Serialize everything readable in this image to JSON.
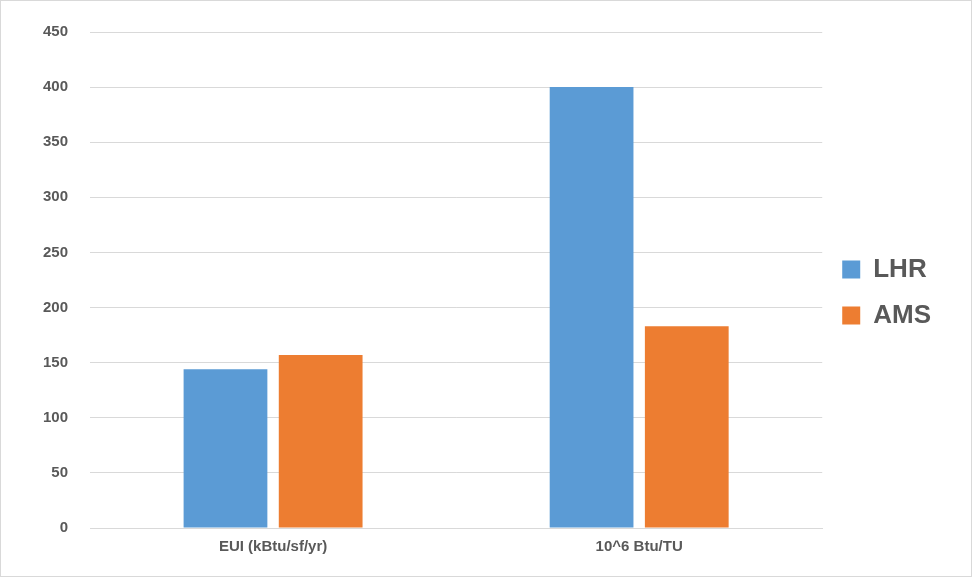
{
  "chart_data": {
    "type": "bar",
    "categories": [
      "EUI (kBtu/sf/yr)",
      "10^6 Btu/TU"
    ],
    "series": [
      {
        "name": "LHR",
        "color": "#5b9bd5",
        "values": [
          144,
          400
        ]
      },
      {
        "name": "AMS",
        "color": "#ed7d31",
        "values": [
          157,
          183
        ]
      }
    ],
    "ylim": [
      0,
      450
    ],
    "yticks": [
      0,
      50,
      100,
      150,
      200,
      250,
      300,
      350,
      400,
      450
    ],
    "grid": true,
    "legend": "right"
  }
}
